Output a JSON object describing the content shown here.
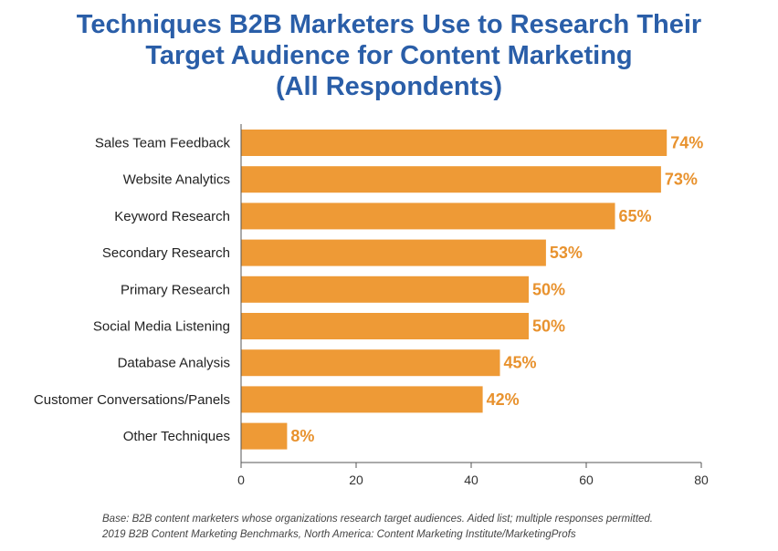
{
  "title_lines": [
    "Techniques B2B Marketers Use to Research Their",
    "Target Audience for Content Marketing",
    "(All Respondents)"
  ],
  "footnotes": [
    "Base: B2B content marketers whose organizations research target audiences. Aided list; multiple responses permitted.",
    "2019 B2B Content Marketing Benchmarks, North America: Content Marketing Institute/MarketingProfs"
  ],
  "colors": {
    "bar": "#ee9a36",
    "value_label": "#e8922e",
    "title": "#2a5ea8"
  },
  "chart_data": {
    "type": "bar",
    "orientation": "horizontal",
    "title": "Techniques B2B Marketers Use to Research Their Target Audience for Content Marketing (All Respondents)",
    "categories": [
      "Sales Team Feedback",
      "Website Analytics",
      "Keyword Research",
      "Secondary Research",
      "Primary Research",
      "Social Media Listening",
      "Database Analysis",
      "Customer Conversations/Panels",
      "Other Techniques"
    ],
    "values": [
      74,
      73,
      65,
      53,
      50,
      50,
      45,
      42,
      8
    ],
    "value_labels": [
      "74%",
      "73%",
      "65%",
      "53%",
      "50%",
      "50%",
      "45%",
      "42%",
      "8%"
    ],
    "xlim": [
      0,
      80
    ],
    "xticks": [
      0,
      20,
      40,
      60,
      80
    ],
    "grid": false,
    "legend": "none"
  }
}
